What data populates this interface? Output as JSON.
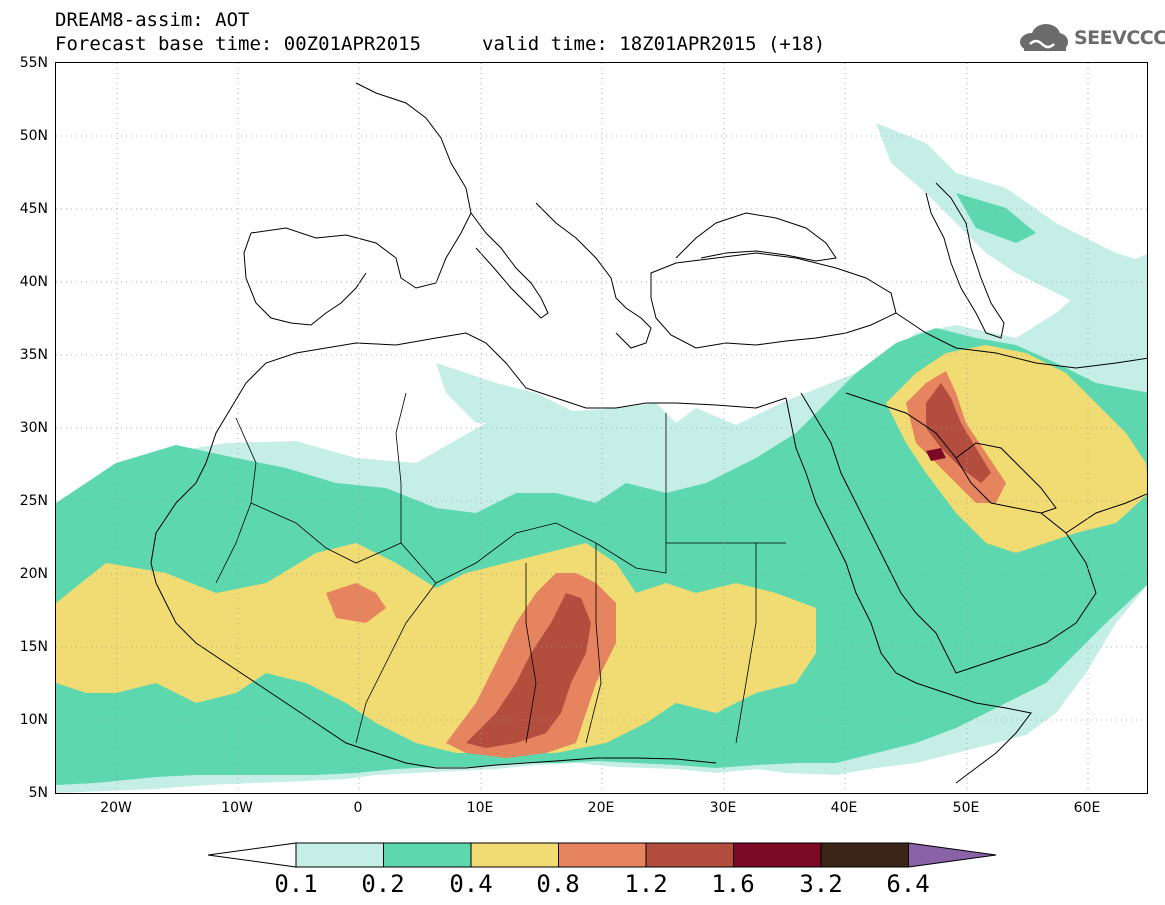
{
  "header": {
    "line1": "DREAM8-assim: AOT",
    "line2": "Forecast base time: 00Z01APR2015",
    "valid": "valid time: 18Z01APR2015 (+18)"
  },
  "logo": {
    "text": "SEEVCCC",
    "icon": "cloud-icon"
  },
  "axes": {
    "lat_labels": [
      "55N",
      "50N",
      "45N",
      "40N",
      "35N",
      "30N",
      "25N",
      "20N",
      "15N",
      "10N",
      "5N"
    ],
    "lon_labels": [
      "20W",
      "10W",
      "0",
      "10E",
      "20E",
      "30E",
      "40E",
      "50E",
      "60E"
    ]
  },
  "colorbar": {
    "labels": [
      "0.1",
      "0.2",
      "0.4",
      "0.8",
      "1.2",
      "1.6",
      "3.2",
      "6.4"
    ],
    "colors": [
      "#ffffff",
      "#c4eee6",
      "#5dd7ae",
      "#f1dc73",
      "#e5845f",
      "#b34e3f",
      "#7c0a26",
      "#3b2418",
      "#8a62a8"
    ]
  },
  "map": {
    "region": "North Africa, Mediterranean and Middle East",
    "lat_range": [
      5,
      55
    ],
    "lon_range": [
      -25,
      65
    ],
    "variable": "AOT"
  }
}
